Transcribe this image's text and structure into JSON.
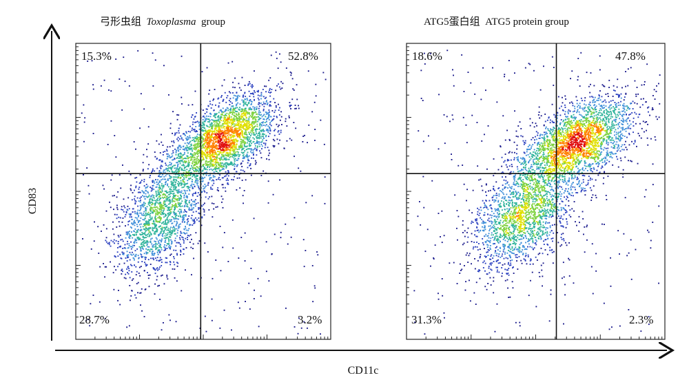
{
  "chart_data": {
    "type": "scatter",
    "xlabel": "CD11c",
    "ylabel": "CD83",
    "panels": [
      {
        "title_cn": "弓形虫组",
        "title_en_italic": "Toxoplasma",
        "title_en_suffix": "group",
        "quadrants": {
          "upper_left": "15.3%",
          "upper_right": "52.8%",
          "lower_left": "28.7%",
          "lower_right": "3.2%"
        },
        "populations": [
          {
            "name": "main",
            "cx": 0.58,
            "cy": 0.68,
            "sx": 0.105,
            "sy": 0.075,
            "rho": 0.55,
            "n": 2600
          },
          {
            "name": "tail",
            "cx": 0.33,
            "cy": 0.42,
            "sx": 0.09,
            "sy": 0.1,
            "rho": 0.5,
            "n": 1700
          }
        ],
        "quadrant_lines": {
          "x": 0.49,
          "y": 0.56
        }
      },
      {
        "title_cn": "ATG5蛋白组",
        "title_en_italic": "",
        "title_en_suffix": "ATG5  protein  group",
        "quadrants": {
          "upper_left": "18.6%",
          "upper_right": "47.8%",
          "lower_left": "31.3%",
          "lower_right": "2.3%"
        },
        "populations": [
          {
            "name": "main",
            "cx": 0.66,
            "cy": 0.67,
            "sx": 0.11,
            "sy": 0.075,
            "rho": 0.5,
            "n": 2400
          },
          {
            "name": "tail",
            "cx": 0.45,
            "cy": 0.43,
            "sx": 0.1,
            "sy": 0.095,
            "rho": 0.45,
            "n": 1900
          }
        ],
        "quadrant_lines": {
          "x": 0.58,
          "y": 0.56
        }
      }
    ],
    "grid": false,
    "colormap": [
      "#1a1a8c",
      "#2a3fbf",
      "#3f8fd9",
      "#2fb39b",
      "#7ed23f",
      "#e0e000",
      "#ff8000",
      "#e01010"
    ]
  }
}
